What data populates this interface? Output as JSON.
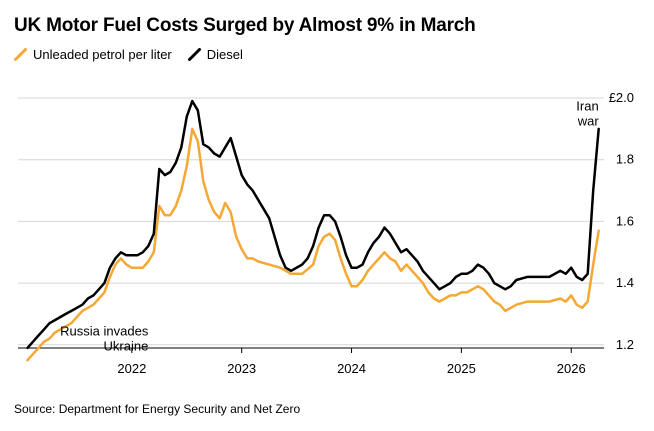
{
  "chart_data": {
    "type": "line",
    "title": "UK Motor Fuel Costs Surged by Almost 9% in March",
    "source": "Source: Department for Energy Security and Net Zero",
    "ylim": [
      1.1,
      2.0
    ],
    "y_ticks": [
      {
        "value": 1.2,
        "label": "1.2"
      },
      {
        "value": 1.4,
        "label": "1.4"
      },
      {
        "value": 1.6,
        "label": "1.6"
      },
      {
        "value": 1.8,
        "label": "1.8"
      },
      {
        "value": 2.0,
        "label": "£2.0"
      }
    ],
    "x_ticks": [
      {
        "value": 2022.0,
        "label": "2022"
      },
      {
        "value": 2023.0,
        "label": "2023"
      },
      {
        "value": 2024.0,
        "label": "2024"
      },
      {
        "value": 2025.0,
        "label": "2025"
      },
      {
        "value": 2026.0,
        "label": "2026"
      }
    ],
    "grid": "horizontal",
    "legend": "top-left",
    "series": [
      {
        "name": "Unleaded petrol per liter",
        "color": "#f5a833",
        "points": [
          [
            2021.05,
            1.15
          ],
          [
            2021.1,
            1.17
          ],
          [
            2021.15,
            1.19
          ],
          [
            2021.2,
            1.21
          ],
          [
            2021.25,
            1.22
          ],
          [
            2021.3,
            1.24
          ],
          [
            2021.35,
            1.25
          ],
          [
            2021.4,
            1.26
          ],
          [
            2021.45,
            1.27
          ],
          [
            2021.5,
            1.29
          ],
          [
            2021.55,
            1.31
          ],
          [
            2021.6,
            1.32
          ],
          [
            2021.65,
            1.33
          ],
          [
            2021.7,
            1.35
          ],
          [
            2021.75,
            1.37
          ],
          [
            2021.8,
            1.42
          ],
          [
            2021.85,
            1.46
          ],
          [
            2021.9,
            1.48
          ],
          [
            2021.95,
            1.46
          ],
          [
            2022.0,
            1.45
          ],
          [
            2022.05,
            1.45
          ],
          [
            2022.1,
            1.45
          ],
          [
            2022.15,
            1.47
          ],
          [
            2022.2,
            1.5
          ],
          [
            2022.25,
            1.65
          ],
          [
            2022.3,
            1.62
          ],
          [
            2022.35,
            1.62
          ],
          [
            2022.4,
            1.65
          ],
          [
            2022.45,
            1.7
          ],
          [
            2022.5,
            1.78
          ],
          [
            2022.55,
            1.9
          ],
          [
            2022.6,
            1.86
          ],
          [
            2022.65,
            1.73
          ],
          [
            2022.7,
            1.67
          ],
          [
            2022.75,
            1.63
          ],
          [
            2022.8,
            1.61
          ],
          [
            2022.85,
            1.66
          ],
          [
            2022.9,
            1.63
          ],
          [
            2022.95,
            1.55
          ],
          [
            2023.0,
            1.51
          ],
          [
            2023.05,
            1.48
          ],
          [
            2023.1,
            1.48
          ],
          [
            2023.15,
            1.47
          ],
          [
            2023.25,
            1.46
          ],
          [
            2023.35,
            1.45
          ],
          [
            2023.45,
            1.43
          ],
          [
            2023.55,
            1.43
          ],
          [
            2023.65,
            1.46
          ],
          [
            2023.7,
            1.52
          ],
          [
            2023.75,
            1.55
          ],
          [
            2023.8,
            1.56
          ],
          [
            2023.85,
            1.54
          ],
          [
            2023.9,
            1.48
          ],
          [
            2023.95,
            1.43
          ],
          [
            2024.0,
            1.39
          ],
          [
            2024.05,
            1.39
          ],
          [
            2024.1,
            1.41
          ],
          [
            2024.15,
            1.44
          ],
          [
            2024.2,
            1.46
          ],
          [
            2024.25,
            1.48
          ],
          [
            2024.3,
            1.5
          ],
          [
            2024.35,
            1.48
          ],
          [
            2024.4,
            1.47
          ],
          [
            2024.45,
            1.44
          ],
          [
            2024.5,
            1.46
          ],
          [
            2024.55,
            1.44
          ],
          [
            2024.6,
            1.42
          ],
          [
            2024.65,
            1.4
          ],
          [
            2024.7,
            1.37
          ],
          [
            2024.75,
            1.35
          ],
          [
            2024.8,
            1.34
          ],
          [
            2024.85,
            1.35
          ],
          [
            2024.9,
            1.36
          ],
          [
            2024.95,
            1.36
          ],
          [
            2025.0,
            1.37
          ],
          [
            2025.05,
            1.37
          ],
          [
            2025.1,
            1.38
          ],
          [
            2025.15,
            1.39
          ],
          [
            2025.2,
            1.38
          ],
          [
            2025.25,
            1.36
          ],
          [
            2025.3,
            1.34
          ],
          [
            2025.35,
            1.33
          ],
          [
            2025.4,
            1.31
          ],
          [
            2025.45,
            1.32
          ],
          [
            2025.5,
            1.33
          ],
          [
            2025.6,
            1.34
          ],
          [
            2025.7,
            1.34
          ],
          [
            2025.8,
            1.34
          ],
          [
            2025.9,
            1.35
          ],
          [
            2025.95,
            1.34
          ],
          [
            2026.0,
            1.36
          ],
          [
            2026.05,
            1.33
          ],
          [
            2026.1,
            1.32
          ],
          [
            2026.15,
            1.34
          ],
          [
            2026.2,
            1.46
          ],
          [
            2026.25,
            1.57
          ]
        ]
      },
      {
        "name": "Diesel",
        "color": "#000000",
        "points": [
          [
            2021.05,
            1.19
          ],
          [
            2021.1,
            1.21
          ],
          [
            2021.15,
            1.23
          ],
          [
            2021.2,
            1.25
          ],
          [
            2021.25,
            1.27
          ],
          [
            2021.3,
            1.28
          ],
          [
            2021.35,
            1.29
          ],
          [
            2021.4,
            1.3
          ],
          [
            2021.45,
            1.31
          ],
          [
            2021.5,
            1.32
          ],
          [
            2021.55,
            1.33
          ],
          [
            2021.6,
            1.35
          ],
          [
            2021.65,
            1.36
          ],
          [
            2021.7,
            1.38
          ],
          [
            2021.75,
            1.4
          ],
          [
            2021.8,
            1.45
          ],
          [
            2021.85,
            1.48
          ],
          [
            2021.9,
            1.5
          ],
          [
            2021.95,
            1.49
          ],
          [
            2022.0,
            1.49
          ],
          [
            2022.05,
            1.49
          ],
          [
            2022.1,
            1.5
          ],
          [
            2022.15,
            1.52
          ],
          [
            2022.2,
            1.56
          ],
          [
            2022.25,
            1.77
          ],
          [
            2022.3,
            1.75
          ],
          [
            2022.35,
            1.76
          ],
          [
            2022.4,
            1.79
          ],
          [
            2022.45,
            1.84
          ],
          [
            2022.5,
            1.94
          ],
          [
            2022.55,
            1.99
          ],
          [
            2022.6,
            1.96
          ],
          [
            2022.65,
            1.85
          ],
          [
            2022.7,
            1.84
          ],
          [
            2022.75,
            1.82
          ],
          [
            2022.8,
            1.81
          ],
          [
            2022.85,
            1.84
          ],
          [
            2022.9,
            1.87
          ],
          [
            2022.95,
            1.81
          ],
          [
            2023.0,
            1.75
          ],
          [
            2023.05,
            1.72
          ],
          [
            2023.1,
            1.7
          ],
          [
            2023.15,
            1.67
          ],
          [
            2023.25,
            1.61
          ],
          [
            2023.35,
            1.49
          ],
          [
            2023.4,
            1.45
          ],
          [
            2023.45,
            1.44
          ],
          [
            2023.55,
            1.46
          ],
          [
            2023.6,
            1.48
          ],
          [
            2023.65,
            1.52
          ],
          [
            2023.7,
            1.58
          ],
          [
            2023.75,
            1.62
          ],
          [
            2023.8,
            1.62
          ],
          [
            2023.85,
            1.6
          ],
          [
            2023.9,
            1.55
          ],
          [
            2023.95,
            1.49
          ],
          [
            2024.0,
            1.45
          ],
          [
            2024.05,
            1.45
          ],
          [
            2024.1,
            1.46
          ],
          [
            2024.15,
            1.5
          ],
          [
            2024.2,
            1.53
          ],
          [
            2024.25,
            1.55
          ],
          [
            2024.3,
            1.58
          ],
          [
            2024.35,
            1.56
          ],
          [
            2024.4,
            1.53
          ],
          [
            2024.45,
            1.5
          ],
          [
            2024.5,
            1.51
          ],
          [
            2024.55,
            1.49
          ],
          [
            2024.6,
            1.47
          ],
          [
            2024.65,
            1.44
          ],
          [
            2024.7,
            1.42
          ],
          [
            2024.75,
            1.4
          ],
          [
            2024.8,
            1.38
          ],
          [
            2024.85,
            1.39
          ],
          [
            2024.9,
            1.4
          ],
          [
            2024.95,
            1.42
          ],
          [
            2025.0,
            1.43
          ],
          [
            2025.05,
            1.43
          ],
          [
            2025.1,
            1.44
          ],
          [
            2025.15,
            1.46
          ],
          [
            2025.2,
            1.45
          ],
          [
            2025.25,
            1.43
          ],
          [
            2025.3,
            1.4
          ],
          [
            2025.35,
            1.39
          ],
          [
            2025.4,
            1.38
          ],
          [
            2025.45,
            1.39
          ],
          [
            2025.5,
            1.41
          ],
          [
            2025.6,
            1.42
          ],
          [
            2025.7,
            1.42
          ],
          [
            2025.8,
            1.42
          ],
          [
            2025.9,
            1.44
          ],
          [
            2025.95,
            1.43
          ],
          [
            2026.0,
            1.45
          ],
          [
            2026.05,
            1.42
          ],
          [
            2026.1,
            1.41
          ],
          [
            2026.15,
            1.43
          ],
          [
            2026.2,
            1.7
          ],
          [
            2026.25,
            1.9
          ]
        ]
      }
    ],
    "annotations": [
      {
        "lines": [
          "Russia invades",
          "Ukraine"
        ],
        "x": 2022.15,
        "y": 1.23,
        "anchor": "end"
      },
      {
        "lines": [
          "Iran",
          "war"
        ],
        "x": 2026.25,
        "y": 1.96,
        "anchor": "end"
      }
    ]
  }
}
